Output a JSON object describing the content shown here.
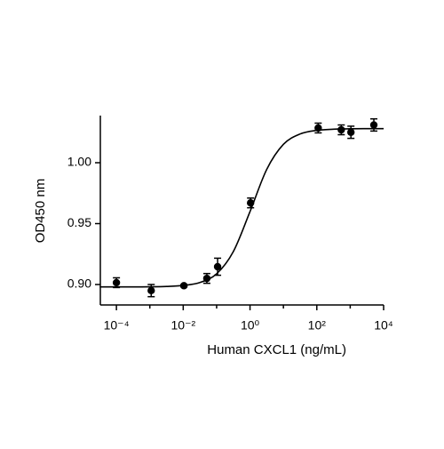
{
  "chart_data": {
    "type": "scatter",
    "xlabel": "Human CXCL1 (ng/mL)",
    "ylabel": "OD450 nm",
    "log_x": true,
    "xlim": [
      3.3e-05,
      10000
    ],
    "ylim": [
      0.8832,
      1.0387
    ],
    "xticks": [
      {
        "value": 0.0001,
        "label": "10⁻⁴"
      },
      {
        "value": 0.01,
        "label": "10⁻²"
      },
      {
        "value": 1,
        "label": "10⁰"
      },
      {
        "value": 100,
        "label": "10²"
      },
      {
        "value": 10000,
        "label": "10⁴"
      }
    ],
    "yticks": [
      {
        "value": 0.9,
        "label": "0.90"
      },
      {
        "value": 0.95,
        "label": "0.95"
      },
      {
        "value": 1.0,
        "label": "1.00"
      }
    ],
    "color": "#000000",
    "x": [
      0.0001,
      0.0011,
      0.0105,
      0.051,
      0.107,
      1.04,
      110,
      540,
      1050,
      5100
    ],
    "values": [
      0.9015,
      0.895,
      0.899,
      0.905,
      0.9146,
      0.967,
      1.0285,
      1.027,
      1.025,
      1.031
    ],
    "errors": [
      0.004,
      0.005,
      0.001,
      0.004,
      0.007,
      0.004,
      0.004,
      0.004,
      0.005,
      0.005
    ],
    "curve": {
      "x": [
        3.16e-05,
        0.0001,
        0.000316,
        0.001,
        0.00316,
        0.01,
        0.0316,
        0.1,
        0.316,
        1,
        3.16,
        10,
        31.6,
        100,
        316,
        1000,
        3162,
        10000
      ],
      "y": [
        0.898,
        0.898,
        0.898,
        0.8981,
        0.8984,
        0.8992,
        0.9016,
        0.9088,
        0.927,
        0.9599,
        0.9945,
        1.0151,
        1.0236,
        1.0266,
        1.0275,
        1.0279,
        1.028,
        1.028
      ]
    }
  }
}
